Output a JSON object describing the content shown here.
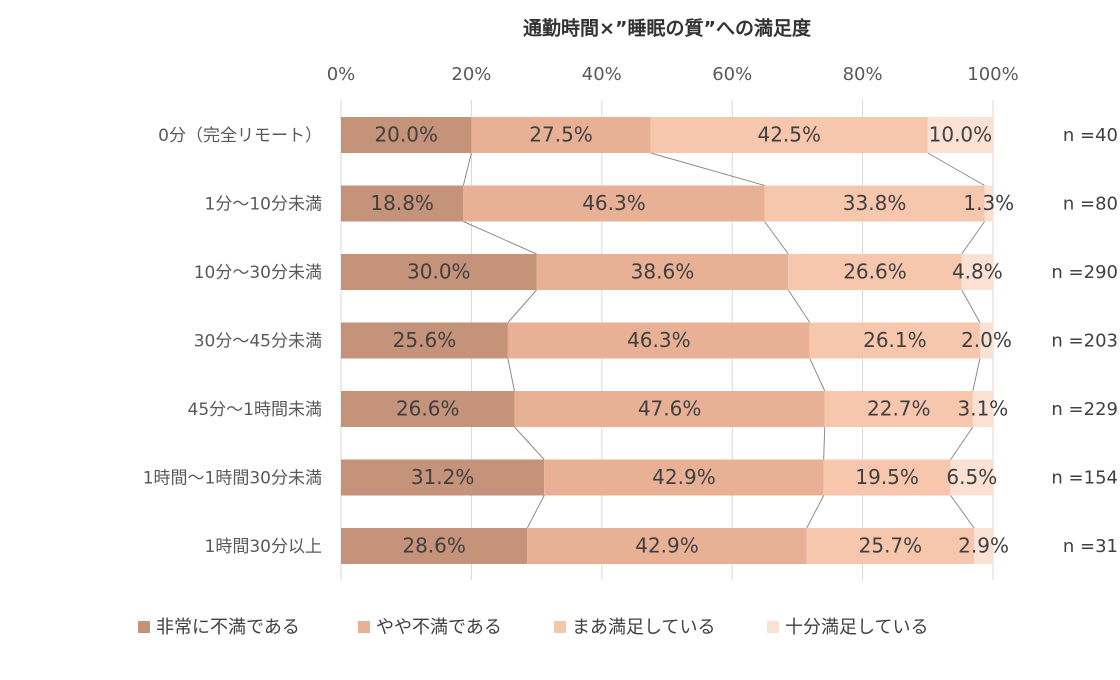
{
  "chart_data": {
    "type": "bar",
    "orientation": "horizontal-stacked-100",
    "title": "通勤時間×”睡眠の質”への満足度",
    "x_ticks": [
      "0%",
      "20%",
      "40%",
      "60%",
      "80%",
      "100%"
    ],
    "xlim": [
      0,
      100
    ],
    "grid": true,
    "legend_position": "bottom",
    "categories": [
      "0分（完全リモート）",
      "1分～10分未満",
      "10分～30分未満",
      "30分～45分未満",
      "45分～1時間未満",
      "1時間～1時間30分未満",
      "1時間30分以上"
    ],
    "n_labels": [
      "n =40",
      "n =80",
      "n =290",
      "n =203",
      "n =229",
      "n =154",
      "n =31"
    ],
    "series": [
      {
        "name": "非常に不満である",
        "color": "#c5927a",
        "values": [
          20.0,
          18.8,
          30.0,
          25.6,
          26.6,
          31.2,
          28.6
        ],
        "labels": [
          "20.0%",
          "18.8%",
          "30.0%",
          "25.6%",
          "26.6%",
          "31.2%",
          "28.6%"
        ]
      },
      {
        "name": "やや不満である",
        "color": "#e8b196",
        "values": [
          27.5,
          46.3,
          38.6,
          46.3,
          47.6,
          42.9,
          42.9
        ],
        "labels": [
          "27.5%",
          "46.3%",
          "38.6%",
          "46.3%",
          "47.6%",
          "42.9%",
          "42.9%"
        ]
      },
      {
        "name": "まあ満足している",
        "color": "#f6c6ad",
        "values": [
          42.5,
          33.8,
          26.6,
          26.1,
          22.7,
          19.5,
          25.7
        ],
        "labels": [
          "42.5%",
          "33.8%",
          "26.6%",
          "26.1%",
          "22.7%",
          "19.5%",
          "25.7%"
        ]
      },
      {
        "name": "十分満足している",
        "color": "#fbe1d4",
        "values": [
          10.0,
          1.3,
          4.8,
          2.0,
          3.1,
          6.5,
          2.9
        ],
        "labels": [
          "10.0%",
          "1.3%",
          "4.8%",
          "2.0%",
          "3.1%",
          "6.5%",
          "2.9%"
        ]
      }
    ]
  },
  "colors": {
    "text": "#404040",
    "grid": "#d9d9d9",
    "connector": "#8c8c8c"
  }
}
